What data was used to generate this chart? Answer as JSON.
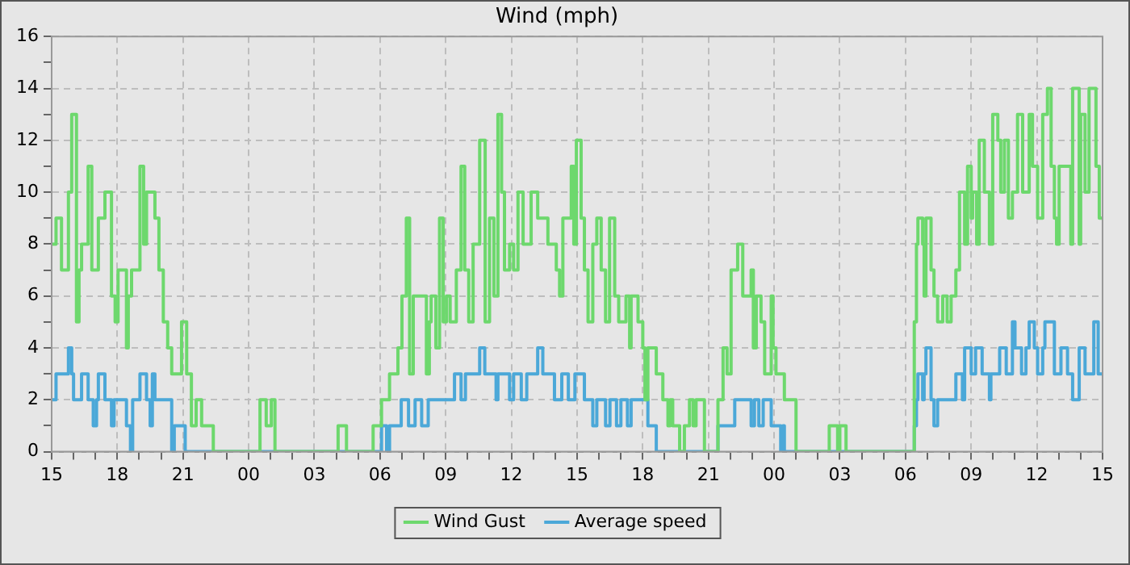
{
  "chart_data": {
    "type": "step",
    "title": "Wind (mph)",
    "xlim": [
      "--01-01T15:00",
      "--01-03T15:00"
    ],
    "xticks": [
      {
        "value": "--01-01T15:00",
        "label": "15"
      },
      {
        "value": "--01-01T16:00",
        "label": null
      },
      {
        "value": "--01-01T17:00",
        "label": null
      },
      {
        "value": "--01-01T18:00",
        "label": "18"
      },
      {
        "value": "--01-01T19:00",
        "label": null
      },
      {
        "value": "--01-01T20:00",
        "label": null
      },
      {
        "value": "--01-01T21:00",
        "label": "21"
      },
      {
        "value": "--01-01T22:00",
        "label": null
      },
      {
        "value": "--01-01T23:00",
        "label": null
      },
      {
        "value": "--01-02T00:00",
        "label": "00"
      },
      {
        "value": "--01-02T01:00",
        "label": null
      },
      {
        "value": "--01-02T02:00",
        "label": null
      },
      {
        "value": "--01-02T03:00",
        "label": "03"
      },
      {
        "value": "--01-02T04:00",
        "label": null
      },
      {
        "value": "--01-02T05:00",
        "label": null
      },
      {
        "value": "--01-02T06:00",
        "label": "06"
      },
      {
        "value": "--01-02T07:00",
        "label": null
      },
      {
        "value": "--01-02T08:00",
        "label": null
      },
      {
        "value": "--01-02T09:00",
        "label": "09"
      },
      {
        "value": "--01-02T10:00",
        "label": null
      },
      {
        "value": "--01-02T11:00",
        "label": null
      },
      {
        "value": "--01-02T12:00",
        "label": "12"
      },
      {
        "value": "--01-02T13:00",
        "label": null
      },
      {
        "value": "--01-02T14:00",
        "label": null
      },
      {
        "value": "--01-02T15:00",
        "label": "15"
      },
      {
        "value": "--01-02T16:00",
        "label": null
      },
      {
        "value": "--01-02T17:00",
        "label": null
      },
      {
        "value": "--01-02T18:00",
        "label": "18"
      },
      {
        "value": "--01-02T19:00",
        "label": null
      },
      {
        "value": "--01-02T20:00",
        "label": null
      },
      {
        "value": "--01-02T21:00",
        "label": "21"
      },
      {
        "value": "--01-02T22:00",
        "label": null
      },
      {
        "value": "--01-02T23:00",
        "label": null
      },
      {
        "value": "--01-03T00:00",
        "label": "00"
      },
      {
        "value": "--01-03T01:00",
        "label": null
      },
      {
        "value": "--01-03T02:00",
        "label": null
      },
      {
        "value": "--01-03T03:00",
        "label": "03"
      },
      {
        "value": "--01-03T04:00",
        "label": null
      },
      {
        "value": "--01-03T05:00",
        "label": null
      },
      {
        "value": "--01-03T06:00",
        "label": "06"
      },
      {
        "value": "--01-03T07:00",
        "label": null
      },
      {
        "value": "--01-03T08:00",
        "label": null
      },
      {
        "value": "--01-03T09:00",
        "label": "09"
      },
      {
        "value": "--01-03T10:00",
        "label": null
      },
      {
        "value": "--01-03T11:00",
        "label": null
      },
      {
        "value": "--01-03T12:00",
        "label": "12"
      },
      {
        "value": "--01-03T13:00",
        "label": null
      },
      {
        "value": "--01-03T14:00",
        "label": null
      },
      {
        "value": "--01-03T15:00",
        "label": "15"
      }
    ],
    "ylim": [
      0,
      16
    ],
    "yticks": [
      0,
      {
        "value": 1,
        "label": null
      },
      2,
      {
        "value": 3,
        "label": null
      },
      4,
      {
        "value": 5,
        "label": null
      },
      6,
      {
        "value": 7,
        "label": null
      },
      8,
      {
        "value": 9,
        "label": null
      },
      10,
      {
        "value": 11,
        "label": null
      },
      12,
      {
        "value": 13,
        "label": null
      },
      14,
      {
        "value": 15,
        "label": null
      },
      16
    ],
    "grid": true,
    "legend": "bottom",
    "marker": "none",
    "line_style": "solid",
    "series": [
      {
        "name": "Wind Gust",
        "color": "#6dd86d",
        "x": [
          "--01-01T15:00",
          "--01-01T15:12",
          "--01-01T15:27",
          "--01-01T15:46",
          "--01-01T15:55",
          "--01-01T16:08",
          "--01-01T16:15",
          "--01-01T16:22",
          "--01-01T16:40",
          "--01-01T16:50",
          "--01-01T17:08",
          "--01-01T17:26",
          "--01-01T17:44",
          "--01-01T17:54",
          "--01-01T18:02",
          "--01-01T18:25",
          "--01-01T18:30",
          "--01-01T18:39",
          "--01-01T19:02",
          "--01-01T19:12",
          "--01-01T19:20",
          "--01-01T19:43",
          "--01-01T19:54",
          "--01-01T20:06",
          "--01-01T20:18",
          "--01-01T20:29",
          "--01-01T20:56",
          "--01-01T21:10",
          "--01-01T21:23",
          "--01-01T21:36",
          "--01-01T21:51",
          "--01-01T22:23",
          "--01-02T00:31",
          "--01-02T00:48",
          "--01-02T01:02",
          "--01-02T01:12",
          "--01-02T04:05",
          "--01-02T04:28",
          "--01-02T05:41",
          "--01-02T06:04",
          "--01-02T06:26",
          "--01-02T06:49",
          "--01-02T07:00",
          "--01-02T07:12",
          "--01-02T07:21",
          "--01-02T07:31",
          "--01-02T08:07",
          "--01-02T08:15",
          "--01-02T08:20",
          "--01-02T08:33",
          "--01-02T08:43",
          "--01-02T08:53",
          "--01-02T09:02",
          "--01-02T09:12",
          "--01-02T09:29",
          "--01-02T09:42",
          "--01-02T09:52",
          "--01-02T10:03",
          "--01-02T10:15",
          "--01-02T10:33",
          "--01-02T10:48",
          "--01-02T11:00",
          "--01-02T11:12",
          "--01-02T11:23",
          "--01-02T11:33",
          "--01-02T11:41",
          "--01-02T11:55",
          "--01-02T12:06",
          "--01-02T12:18",
          "--01-02T12:32",
          "--01-02T12:54",
          "--01-02T13:12",
          "--01-02T13:40",
          "--01-02T14:03",
          "--01-02T14:12",
          "--01-02T14:21",
          "--01-02T14:44",
          "--01-02T14:51",
          "--01-02T14:58",
          "--01-02T15:11",
          "--01-02T15:20",
          "--01-02T15:30",
          "--01-02T15:43",
          "--01-02T15:54",
          "--01-02T16:06",
          "--01-02T16:18",
          "--01-02T16:29",
          "--01-02T16:43",
          "--01-02T16:54",
          "--01-02T17:14",
          "--01-02T17:24",
          "--01-02T17:28",
          "--01-02T17:47",
          "--01-02T18:00",
          "--01-02T18:06",
          "--01-02T18:14",
          "--01-02T18:37",
          "--01-02T18:55",
          "--01-02T19:09",
          "--01-02T19:15",
          "--01-02T19:22",
          "--01-02T19:41",
          "--01-02T19:54",
          "--01-02T20:08",
          "--01-02T20:18",
          "--01-02T20:26",
          "--01-02T20:49",
          "--01-02T21:26",
          "--01-02T21:40",
          "--01-02T21:51",
          "--01-02T22:02",
          "--01-02T22:20",
          "--01-02T22:34",
          "--01-02T22:57",
          "--01-02T23:03",
          "--01-02T23:11",
          "--01-02T23:24",
          "--01-02T23:34",
          "--01-02T23:52",
          "--01-02T23:57",
          "--01-03T00:05",
          "--01-03T00:28",
          "--01-03T01:00",
          "--01-03T02:31",
          "--01-03T02:54",
          "--01-03T03:00",
          "--01-03T03:17",
          "--01-03T06:24",
          "--01-03T06:30",
          "--01-03T06:34",
          "--01-03T06:47",
          "--01-03T06:51",
          "--01-03T06:56",
          "--01-03T07:10",
          "--01-03T07:18",
          "--01-03T07:28",
          "--01-03T07:42",
          "--01-03T07:54",
          "--01-03T08:05",
          "--01-03T08:18",
          "--01-03T08:28",
          "--01-03T08:42",
          "--01-03T08:50",
          "--01-03T09:00",
          "--01-03T09:04",
          "--01-03T09:15",
          "--01-03T09:22",
          "--01-03T09:36",
          "--01-03T09:50",
          "--01-03T09:59",
          "--01-03T10:13",
          "--01-03T10:21",
          "--01-03T10:31",
          "--01-03T10:42",
          "--01-03T10:53",
          "--01-03T11:07",
          "--01-03T11:21",
          "--01-03T11:39",
          "--01-03T11:48",
          "--01-03T12:02",
          "--01-03T12:16",
          "--01-03T12:29",
          "--01-03T12:39",
          "--01-03T12:48",
          "--01-03T12:54",
          "--01-03T13:01",
          "--01-03T13:33",
          "--01-03T13:38",
          "--01-03T13:56",
          "--01-03T14:00",
          "--01-03T14:12",
          "--01-03T14:23",
          "--01-03T14:42",
          "--01-03T14:51",
          "--01-03T15:00"
        ],
        "values": [
          8,
          9,
          7,
          10,
          13,
          5,
          7,
          8,
          11,
          7,
          9,
          10,
          6,
          5,
          7,
          4,
          6,
          7,
          11,
          8,
          10,
          9,
          7,
          5,
          4,
          3,
          5,
          3,
          1,
          2,
          1,
          0,
          2,
          1,
          2,
          0,
          1,
          0,
          1,
          2,
          3,
          4,
          6,
          9,
          3,
          6,
          3,
          5,
          6,
          4,
          9,
          5,
          6,
          5,
          7,
          11,
          7,
          5,
          8,
          12,
          5,
          9,
          6,
          13,
          10,
          7,
          8,
          7,
          10,
          8,
          10,
          9,
          8,
          7,
          6,
          9,
          11,
          8,
          12,
          9,
          7,
          5,
          8,
          9,
          7,
          5,
          9,
          6,
          5,
          6,
          4,
          6,
          5,
          4,
          2,
          4,
          3,
          2,
          1,
          2,
          1,
          0,
          1,
          2,
          1,
          2,
          0,
          2,
          4,
          3,
          7,
          8,
          6,
          7,
          4,
          6,
          5,
          3,
          6,
          4,
          3,
          2,
          0,
          1,
          0,
          1,
          0,
          5,
          8,
          9,
          8,
          6,
          9,
          7,
          6,
          5,
          6,
          5,
          6,
          7,
          10,
          8,
          11,
          9,
          10,
          8,
          12,
          10,
          8,
          13,
          12,
          10,
          12,
          9,
          10,
          13,
          10,
          13,
          11,
          9,
          13,
          14,
          11,
          9,
          8,
          11,
          8,
          14,
          8,
          13,
          10,
          14,
          11,
          9,
          9
        ]
      },
      {
        "name": "Average speed",
        "color": "#4ba8d8",
        "x": [
          "--01-01T15:00",
          "--01-01T15:12",
          "--01-01T15:46",
          "--01-01T15:55",
          "--01-01T16:00",
          "--01-01T16:22",
          "--01-01T16:40",
          "--01-01T16:54",
          "--01-01T17:03",
          "--01-01T17:08",
          "--01-01T17:26",
          "--01-01T17:44",
          "--01-01T17:51",
          "--01-01T18:25",
          "--01-01T18:36",
          "--01-01T18:42",
          "--01-01T19:02",
          "--01-01T19:20",
          "--01-01T19:30",
          "--01-01T19:36",
          "--01-01T19:43",
          "--01-01T20:29",
          "--01-01T20:36",
          "--01-01T21:06",
          "--01-02T06:04",
          "--01-02T06:18",
          "--01-02T06:26",
          "--01-02T06:58",
          "--01-02T07:18",
          "--01-02T07:36",
          "--01-02T07:54",
          "--01-02T08:12",
          "--01-02T09:24",
          "--01-02T09:42",
          "--01-02T09:54",
          "--01-02T10:33",
          "--01-02T10:47",
          "--01-02T11:18",
          "--01-02T11:23",
          "--01-02T11:55",
          "--01-02T12:06",
          "--01-02T12:27",
          "--01-02T12:42",
          "--01-02T13:12",
          "--01-02T13:26",
          "--01-02T13:58",
          "--01-02T14:18",
          "--01-02T14:36",
          "--01-02T14:54",
          "--01-02T15:20",
          "--01-02T15:43",
          "--01-02T15:54",
          "--01-02T16:18",
          "--01-02T16:30",
          "--01-02T16:48",
          "--01-02T17:00",
          "--01-02T17:18",
          "--01-02T17:28",
          "--01-02T18:14",
          "--01-02T18:37",
          "--01-02T21:26",
          "--01-02T22:12",
          "--01-02T22:57",
          "--01-02T23:06",
          "--01-02T23:18",
          "--01-02T23:30",
          "--01-02T23:52",
          "--01-03T00:18",
          "--01-03T00:24",
          "--01-03T00:28",
          "--01-03T06:24",
          "--01-03T06:30",
          "--01-03T06:34",
          "--01-03T06:47",
          "--01-03T06:51",
          "--01-03T06:56",
          "--01-03T07:10",
          "--01-03T07:18",
          "--01-03T07:28",
          "--01-03T08:18",
          "--01-03T08:36",
          "--01-03T08:42",
          "--01-03T09:00",
          "--01-03T09:12",
          "--01-03T09:30",
          "--01-03T09:50",
          "--01-03T09:54",
          "--01-03T10:18",
          "--01-03T10:36",
          "--01-03T10:53",
          "--01-03T11:00",
          "--01-03T11:18",
          "--01-03T11:30",
          "--01-03T11:39",
          "--01-03T11:53",
          "--01-03T12:02",
          "--01-03T12:16",
          "--01-03T12:22",
          "--01-03T12:48",
          "--01-03T13:06",
          "--01-03T13:24",
          "--01-03T13:38",
          "--01-03T13:56",
          "--01-03T14:12",
          "--01-03T14:36",
          "--01-03T14:48",
          "--01-03T15:00"
        ],
        "values": [
          2,
          3,
          4,
          3,
          2,
          3,
          2,
          1,
          2,
          3,
          2,
          1,
          2,
          1,
          0,
          2,
          3,
          2,
          1,
          3,
          2,
          0,
          1,
          0,
          1,
          0,
          1,
          2,
          1,
          2,
          1,
          2,
          3,
          2,
          3,
          4,
          3,
          2,
          3,
          2,
          3,
          2,
          3,
          4,
          3,
          2,
          3,
          2,
          3,
          2,
          1,
          2,
          1,
          2,
          1,
          2,
          1,
          2,
          1,
          0,
          1,
          2,
          1,
          2,
          1,
          2,
          1,
          0,
          1,
          0,
          1,
          2,
          3,
          2,
          3,
          4,
          2,
          1,
          2,
          3,
          2,
          4,
          3,
          4,
          3,
          2,
          3,
          4,
          3,
          5,
          4,
          3,
          4,
          5,
          4,
          3,
          4,
          5,
          3,
          4,
          3,
          2,
          4,
          3,
          5,
          3,
          3
        ]
      }
    ]
  }
}
